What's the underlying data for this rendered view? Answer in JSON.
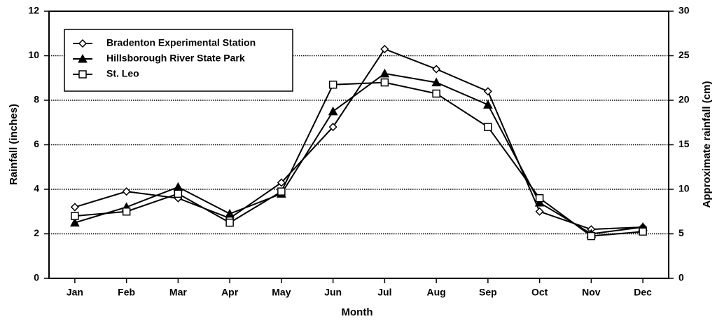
{
  "chart_data": {
    "type": "line",
    "xlabel": "Month",
    "ylabel": "Rainfall (inches)",
    "y2label": "Approximate rainfall (cm)",
    "categories": [
      "Jan",
      "Feb",
      "Mar",
      "Apr",
      "May",
      "Jun",
      "Jul",
      "Aug",
      "Sep",
      "Oct",
      "Nov",
      "Dec"
    ],
    "series": [
      {
        "name": "Bradenton Experimental Station",
        "color": "#000000",
        "marker": "diamond",
        "values": [
          3.2,
          3.9,
          3.6,
          2.7,
          4.3,
          6.8,
          10.3,
          9.4,
          8.4,
          3.0,
          2.2,
          2.3
        ]
      },
      {
        "name": "Hillsborough River State Park",
        "color": "#000000",
        "marker": "triangle",
        "values": [
          2.5,
          3.2,
          4.1,
          2.9,
          3.8,
          7.5,
          9.2,
          8.8,
          7.8,
          3.4,
          2.0,
          2.3
        ]
      },
      {
        "name": "St. Leo",
        "color": "#000000",
        "marker": "square",
        "values": [
          2.8,
          3.0,
          3.8,
          2.5,
          3.9,
          8.7,
          8.8,
          8.3,
          6.8,
          3.6,
          1.9,
          2.1
        ]
      }
    ],
    "ylim": [
      0,
      12
    ],
    "yticks": [
      0,
      2,
      4,
      6,
      8,
      10,
      12
    ],
    "y2lim": [
      0,
      30
    ],
    "y2ticks": [
      0,
      5,
      10,
      15,
      20,
      25,
      30
    ],
    "grid": true,
    "legend": "upper left"
  }
}
